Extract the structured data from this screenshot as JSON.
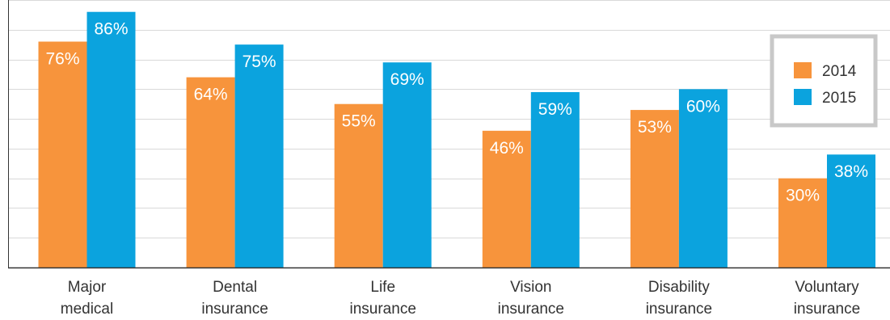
{
  "chart_data": {
    "type": "bar",
    "categories": [
      [
        "Major",
        "medical"
      ],
      [
        "Dental",
        "insurance"
      ],
      [
        "Life",
        "insurance"
      ],
      [
        "Vision",
        "insurance"
      ],
      [
        "Disability",
        "insurance"
      ],
      [
        "Voluntary",
        "insurance"
      ]
    ],
    "series": [
      {
        "name": "2014",
        "values": [
          76,
          64,
          55,
          46,
          53,
          30
        ],
        "labels": [
          "76%",
          "64%",
          "55%",
          "46%",
          "53%",
          "30%"
        ],
        "color": "#f7943c"
      },
      {
        "name": "2015",
        "values": [
          86,
          75,
          69,
          59,
          60,
          38
        ],
        "labels": [
          "86%",
          "75%",
          "69%",
          "59%",
          "60%",
          "38%"
        ],
        "color": "#0ba3de"
      }
    ],
    "ylim": [
      0,
      90
    ],
    "grid": true,
    "legend_position": "top-right",
    "title": "",
    "xlabel": "",
    "ylabel": ""
  }
}
